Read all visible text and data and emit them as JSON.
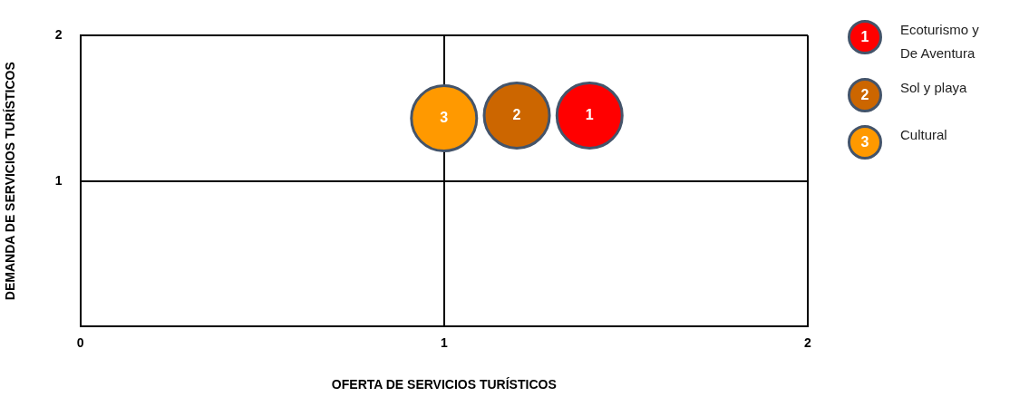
{
  "chart_data": {
    "type": "bubble",
    "xlabel": "OFERTA DE SERVICIOS TURÍSTICOS",
    "ylabel": "DEMANDA DE SERVICIOS TURÍSTICOS",
    "xlim": [
      0,
      2
    ],
    "xticks": [
      0,
      1,
      2
    ],
    "ylim": [
      0,
      2
    ],
    "yticks": [
      1,
      2
    ],
    "grid": true,
    "legend": "right",
    "series": [
      {
        "name": "Ecoturismo y De Aventura",
        "color": "#ff0000",
        "x": [
          1.4
        ],
        "values": [
          1.45
        ],
        "sizes": [
          1
        ]
      },
      {
        "name": "Sol y playa",
        "color": "#cc6600",
        "x": [
          1.2
        ],
        "values": [
          1.45
        ],
        "sizes": [
          1
        ]
      },
      {
        "name": "Cultural",
        "color": "#ff9900",
        "x": [
          1.0
        ],
        "values": [
          1.43
        ],
        "sizes": [
          1
        ]
      }
    ],
    "annotations": [
      {
        "text": "1",
        "x": 1.4,
        "y": 1.45
      },
      {
        "text": "2",
        "x": 1.2,
        "y": 1.45
      },
      {
        "text": "3",
        "x": 1.0,
        "y": 1.43
      }
    ]
  }
}
